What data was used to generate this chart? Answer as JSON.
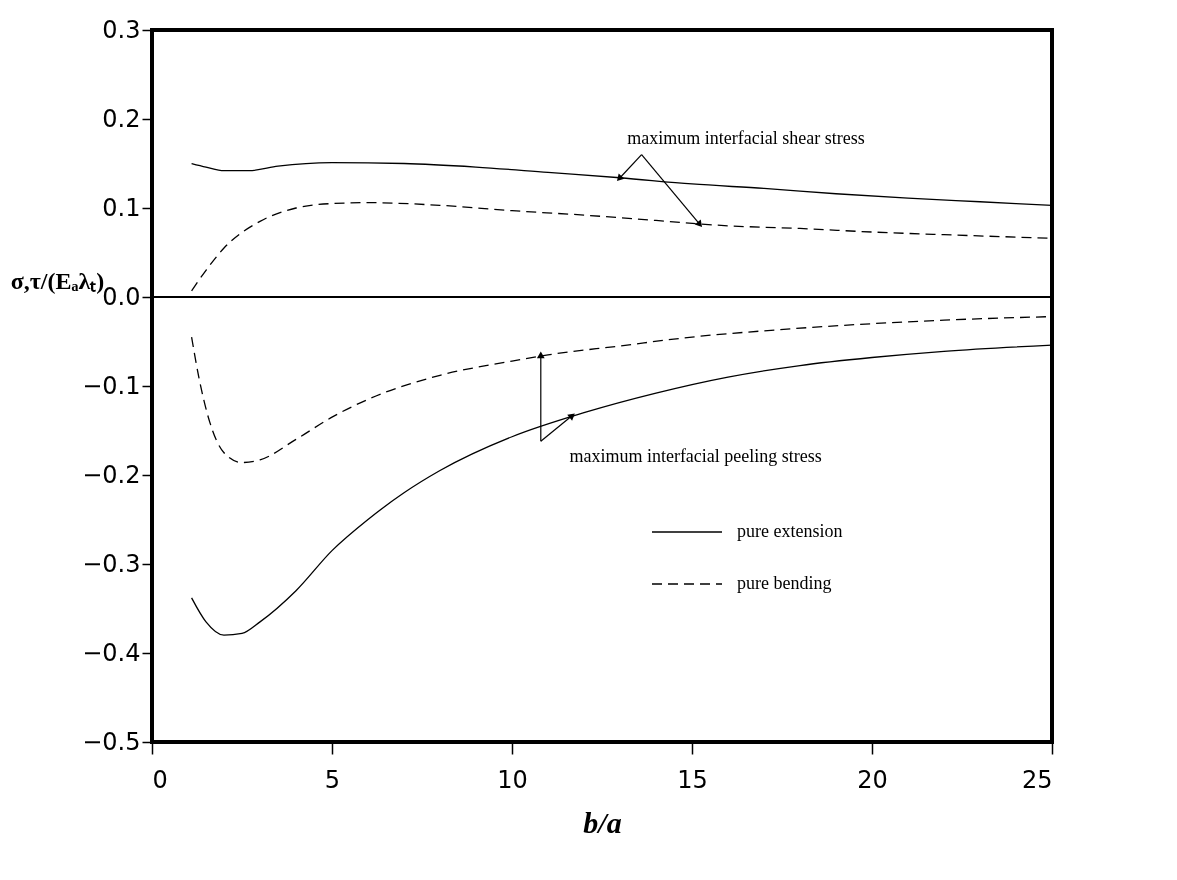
{
  "chart_data": {
    "type": "line",
    "xlabel": "b/a",
    "ylabel": "σ,τ/(Eₐλₜ)",
    "xlim": [
      0,
      25
    ],
    "ylim": [
      -0.5,
      0.3
    ],
    "xticks": [
      0,
      5,
      10,
      15,
      20,
      25
    ],
    "yticks": [
      {
        "value": -0.5,
        "label": "−0.5"
      },
      {
        "value": -0.4,
        "label": "−0.4"
      },
      {
        "value": -0.3,
        "label": "−0.3"
      },
      {
        "value": -0.2,
        "label": "−0.2"
      },
      {
        "value": -0.1,
        "label": "−0.1"
      },
      {
        "value": 0,
        "label": "0.0"
      },
      0.1,
      0.2,
      0.3
    ],
    "grid": false,
    "legend": "bottom right",
    "ref_lines": [
      {
        "axis": "y",
        "value": 0,
        "color": "#000000"
      }
    ],
    "annotations": [
      {
        "text": "maximum interfacial shear stress",
        "x": 13.0,
        "y": 0.134
      },
      {
        "text": "maximum interfacial peeling stress",
        "x": 11.65,
        "y": -0.134
      }
    ],
    "series": [
      {
        "name": "pure extension",
        "color": "#000000",
        "line_style": "solid",
        "x": [
          1.1,
          1.5,
          2,
          2.7,
          3.5,
          5,
          7,
          9,
          11,
          13,
          15,
          17,
          19,
          21,
          23,
          25
        ],
        "values": [
          0.15,
          0.146,
          0.142,
          0.142,
          0.147,
          0.151,
          0.15,
          0.146,
          0.14,
          0.134,
          0.127,
          0.122,
          0.116,
          0.111,
          0.107,
          0.103
        ]
      },
      {
        "name": "pure bending",
        "color": "#000000",
        "line_style": "dashed",
        "x": [
          1.1,
          1.5,
          2,
          3,
          4,
          5,
          6,
          8,
          10,
          12,
          14,
          16,
          18,
          20,
          22,
          25
        ],
        "values": [
          0.007,
          0.03,
          0.055,
          0.085,
          0.1,
          0.105,
          0.106,
          0.103,
          0.097,
          0.092,
          0.086,
          0.08,
          0.077,
          0.073,
          0.07,
          0.066
        ]
      },
      {
        "color": "#000000",
        "line_style": "dashed",
        "x": [
          1.1,
          1.3,
          1.6,
          2,
          2.5,
          3,
          4,
          5,
          6,
          8,
          10,
          11,
          13,
          15,
          17,
          20,
          22,
          25
        ],
        "values": [
          -0.045,
          -0.09,
          -0.14,
          -0.175,
          -0.186,
          -0.183,
          -0.16,
          -0.135,
          -0.115,
          -0.088,
          -0.072,
          -0.065,
          -0.055,
          -0.045,
          -0.038,
          -0.03,
          -0.026,
          -0.022
        ]
      },
      {
        "color": "#000000",
        "line_style": "solid",
        "x": [
          1.1,
          1.5,
          2,
          2.5,
          3,
          4,
          5,
          6,
          7,
          8,
          10,
          12,
          14,
          16,
          18,
          20,
          22,
          25
        ],
        "values": [
          -0.338,
          -0.365,
          -0.38,
          -0.378,
          -0.365,
          -0.33,
          -0.285,
          -0.25,
          -0.22,
          -0.195,
          -0.157,
          -0.13,
          -0.108,
          -0.09,
          -0.077,
          -0.068,
          -0.061,
          -0.054
        ]
      }
    ]
  }
}
